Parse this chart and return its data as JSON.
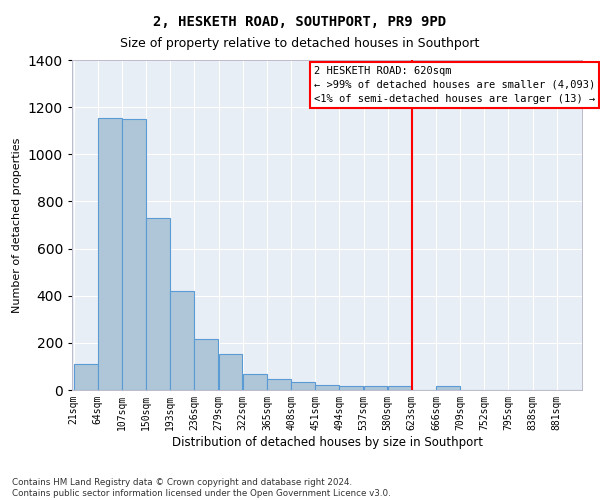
{
  "title": "2, HESKETH ROAD, SOUTHPORT, PR9 9PD",
  "subtitle": "Size of property relative to detached houses in Southport",
  "xlabel": "Distribution of detached houses by size in Southport",
  "ylabel": "Number of detached properties",
  "footer_line1": "Contains HM Land Registry data © Crown copyright and database right 2024.",
  "footer_line2": "Contains public sector information licensed under the Open Government Licence v3.0.",
  "bin_labels": [
    "21sqm",
    "64sqm",
    "107sqm",
    "150sqm",
    "193sqm",
    "236sqm",
    "279sqm",
    "322sqm",
    "365sqm",
    "408sqm",
    "451sqm",
    "494sqm",
    "537sqm",
    "580sqm",
    "623sqm",
    "666sqm",
    "709sqm",
    "752sqm",
    "795sqm",
    "838sqm",
    "881sqm"
  ],
  "bar_heights": [
    110,
    1155,
    1148,
    730,
    420,
    217,
    153,
    70,
    48,
    32,
    20,
    15,
    15,
    15,
    0,
    15,
    0,
    0,
    0,
    0,
    0
  ],
  "bar_color": "#aec6d8",
  "bar_edge_color": "#5b9bd5",
  "vline_color": "red",
  "annotation_title": "2 HESKETH ROAD: 620sqm",
  "annotation_line1": "← >99% of detached houses are smaller (4,093)",
  "annotation_line2": "<1% of semi-detached houses are larger (13) →",
  "ylim": [
    0,
    1400
  ],
  "yticks": [
    0,
    200,
    400,
    600,
    800,
    1000,
    1200,
    1400
  ],
  "background_color": "#e8eef5",
  "grid_color": "white",
  "bin_edges": [
    21,
    64,
    107,
    150,
    193,
    236,
    279,
    322,
    365,
    408,
    451,
    494,
    537,
    580,
    623,
    666,
    709,
    752,
    795,
    838,
    881
  ],
  "vline_position": 623,
  "title_fontsize": 10,
  "subtitle_fontsize": 9
}
